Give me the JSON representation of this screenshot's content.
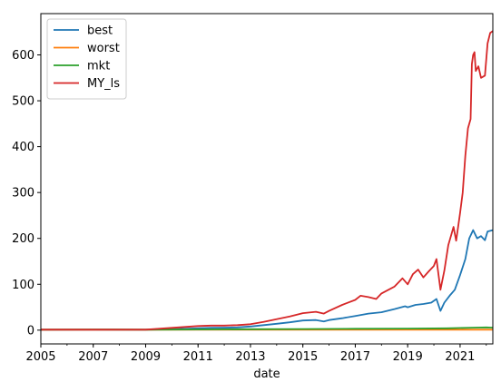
{
  "chart_data": {
    "type": "line",
    "xlabel": "date",
    "ylabel": "",
    "xlim": [
      2005.0,
      2022.25
    ],
    "ylim": [
      -30,
      690
    ],
    "grid": false,
    "legend_position": "top-left",
    "x_ticks": [
      2005,
      2007,
      2009,
      2011,
      2013,
      2015,
      2017,
      2019,
      2021
    ],
    "y_ticks": [
      0,
      100,
      200,
      300,
      400,
      500,
      600
    ],
    "series": [
      {
        "name": "best",
        "color": "#1f77b4",
        "points": [
          [
            2005.0,
            1
          ],
          [
            2006.0,
            1
          ],
          [
            2007.0,
            1
          ],
          [
            2008.0,
            1
          ],
          [
            2009.0,
            1
          ],
          [
            2009.5,
            1.5
          ],
          [
            2010.0,
            2
          ],
          [
            2010.5,
            3
          ],
          [
            2011.0,
            4
          ],
          [
            2011.5,
            5
          ],
          [
            2012.0,
            5.5
          ],
          [
            2012.5,
            6
          ],
          [
            2013.0,
            8
          ],
          [
            2013.5,
            11
          ],
          [
            2014.0,
            14
          ],
          [
            2014.5,
            17
          ],
          [
            2015.0,
            21
          ],
          [
            2015.5,
            22
          ],
          [
            2015.8,
            19
          ],
          [
            2016.0,
            22
          ],
          [
            2016.5,
            26
          ],
          [
            2017.0,
            31
          ],
          [
            2017.5,
            36
          ],
          [
            2018.0,
            39
          ],
          [
            2018.5,
            46
          ],
          [
            2018.9,
            52
          ],
          [
            2019.0,
            50
          ],
          [
            2019.3,
            55
          ],
          [
            2019.6,
            57
          ],
          [
            2019.9,
            60
          ],
          [
            2020.1,
            68
          ],
          [
            2020.25,
            42
          ],
          [
            2020.4,
            60
          ],
          [
            2020.6,
            75
          ],
          [
            2020.8,
            88
          ],
          [
            2021.0,
            120
          ],
          [
            2021.2,
            155
          ],
          [
            2021.35,
            200
          ],
          [
            2021.5,
            218
          ],
          [
            2021.65,
            200
          ],
          [
            2021.8,
            205
          ],
          [
            2021.95,
            196
          ],
          [
            2022.05,
            215
          ],
          [
            2022.25,
            218
          ]
        ]
      },
      {
        "name": "worst",
        "color": "#ff7f0e",
        "points": [
          [
            2005.0,
            1
          ],
          [
            2010.0,
            1
          ],
          [
            2015.0,
            1
          ],
          [
            2020.0,
            1
          ],
          [
            2022.25,
            1
          ]
        ]
      },
      {
        "name": "mkt",
        "color": "#2ca02c",
        "points": [
          [
            2005.0,
            1
          ],
          [
            2007.0,
            1.5
          ],
          [
            2009.0,
            1
          ],
          [
            2011.0,
            1.5
          ],
          [
            2013.0,
            2
          ],
          [
            2015.0,
            2.5
          ],
          [
            2017.0,
            3
          ],
          [
            2019.0,
            3.5
          ],
          [
            2020.5,
            4
          ],
          [
            2021.5,
            5.5
          ],
          [
            2022.0,
            6
          ],
          [
            2022.25,
            5.5
          ]
        ]
      },
      {
        "name": "MY_ls",
        "color": "#d62728",
        "points": [
          [
            2005.0,
            1
          ],
          [
            2007.0,
            1
          ],
          [
            2008.5,
            1
          ],
          [
            2009.0,
            1
          ],
          [
            2009.5,
            3
          ],
          [
            2010.0,
            5
          ],
          [
            2010.5,
            7
          ],
          [
            2011.0,
            9
          ],
          [
            2011.5,
            10
          ],
          [
            2012.0,
            10
          ],
          [
            2012.5,
            11
          ],
          [
            2013.0,
            13
          ],
          [
            2013.5,
            18
          ],
          [
            2014.0,
            24
          ],
          [
            2014.5,
            30
          ],
          [
            2015.0,
            37
          ],
          [
            2015.5,
            40
          ],
          [
            2015.8,
            36
          ],
          [
            2016.0,
            42
          ],
          [
            2016.5,
            55
          ],
          [
            2017.0,
            66
          ],
          [
            2017.2,
            75
          ],
          [
            2017.5,
            72
          ],
          [
            2017.8,
            68
          ],
          [
            2018.0,
            80
          ],
          [
            2018.5,
            95
          ],
          [
            2018.8,
            113
          ],
          [
            2019.0,
            100
          ],
          [
            2019.2,
            122
          ],
          [
            2019.4,
            132
          ],
          [
            2019.6,
            115
          ],
          [
            2019.8,
            128
          ],
          [
            2020.0,
            140
          ],
          [
            2020.1,
            155
          ],
          [
            2020.25,
            88
          ],
          [
            2020.4,
            130
          ],
          [
            2020.55,
            185
          ],
          [
            2020.65,
            205
          ],
          [
            2020.75,
            225
          ],
          [
            2020.85,
            195
          ],
          [
            2021.0,
            255
          ],
          [
            2021.1,
            300
          ],
          [
            2021.2,
            380
          ],
          [
            2021.3,
            440
          ],
          [
            2021.4,
            460
          ],
          [
            2021.45,
            580
          ],
          [
            2021.5,
            600
          ],
          [
            2021.55,
            606
          ],
          [
            2021.6,
            565
          ],
          [
            2021.7,
            575
          ],
          [
            2021.8,
            550
          ],
          [
            2021.95,
            555
          ],
          [
            2022.05,
            625
          ],
          [
            2022.15,
            648
          ],
          [
            2022.25,
            652
          ]
        ]
      }
    ]
  }
}
